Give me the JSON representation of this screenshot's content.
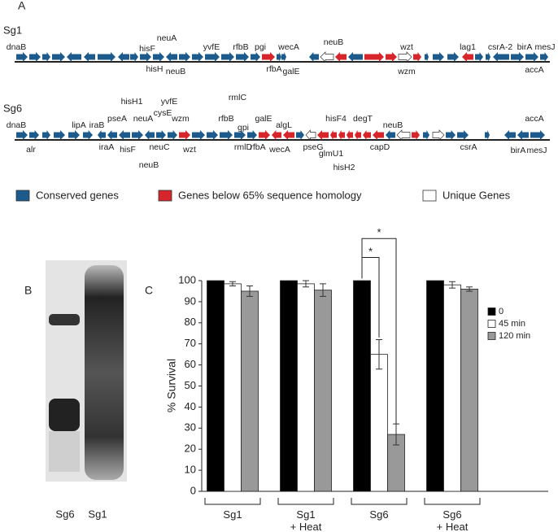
{
  "panel_a": {
    "label": "A",
    "tracks": [
      {
        "name": "Sg1",
        "gene_labels": [
          "dnaB",
          "hisF",
          "neuA",
          "yvfE",
          "rfbB",
          "pgi",
          "wecA",
          "neuB",
          "wzt",
          "lag1",
          "csrA-2",
          "birA",
          "mesJ",
          "hisH",
          "neuB",
          "rfbA",
          "galE",
          "wzm",
          "accA"
        ]
      },
      {
        "name": "Sg6",
        "gene_labels": [
          "dnaB",
          "lipA",
          "iraB",
          "pseA",
          "hisH1",
          "neuA",
          "cysE",
          "yvfE",
          "wzm",
          "rmlC",
          "rfbB",
          "gpi",
          "galE",
          "algL",
          "hisF4",
          "degT",
          "neuB",
          "accA",
          "alr",
          "iraA",
          "hisF",
          "neuC",
          "neuB",
          "wzt",
          "rmlD",
          "rfbA",
          "wecA",
          "pseG",
          "glmU1",
          "hisH2",
          "capD",
          "csrA",
          "birA",
          "mesJ"
        ]
      }
    ],
    "legend": [
      {
        "label": "Conserved genes",
        "color": "#1d5b8c"
      },
      {
        "label": "Genes below 65% sequence homology",
        "color": "#d7262b"
      },
      {
        "label": "Unique Genes",
        "color": "#ffffff"
      }
    ]
  },
  "panel_b": {
    "label": "B",
    "lanes": [
      "Sg6",
      "Sg1"
    ]
  },
  "chart_data": {
    "type": "bar",
    "panel_label": "C",
    "y_label": "% Survival",
    "categories": [
      "Sg1",
      "Sg1\n+ Heat",
      "Sg6",
      "Sg6\n+ Heat"
    ],
    "series": [
      {
        "name": "0",
        "color": "#000000",
        "values": [
          100,
          100,
          100,
          100
        ]
      },
      {
        "name": "45 min",
        "color": "#ffffff",
        "values": [
          98.5,
          98.5,
          65,
          98
        ],
        "errors": [
          1,
          1.5,
          7,
          1.5
        ]
      },
      {
        "name": "120 min",
        "color": "#999999",
        "values": [
          95,
          95.5,
          27,
          96
        ],
        "errors": [
          2.5,
          3,
          5,
          1
        ]
      }
    ],
    "ylim": [
      0,
      100
    ],
    "yticks": [
      0,
      10,
      20,
      30,
      40,
      50,
      60,
      70,
      80,
      90,
      100
    ],
    "legend": "right",
    "annotations": [
      "*",
      "*"
    ]
  }
}
